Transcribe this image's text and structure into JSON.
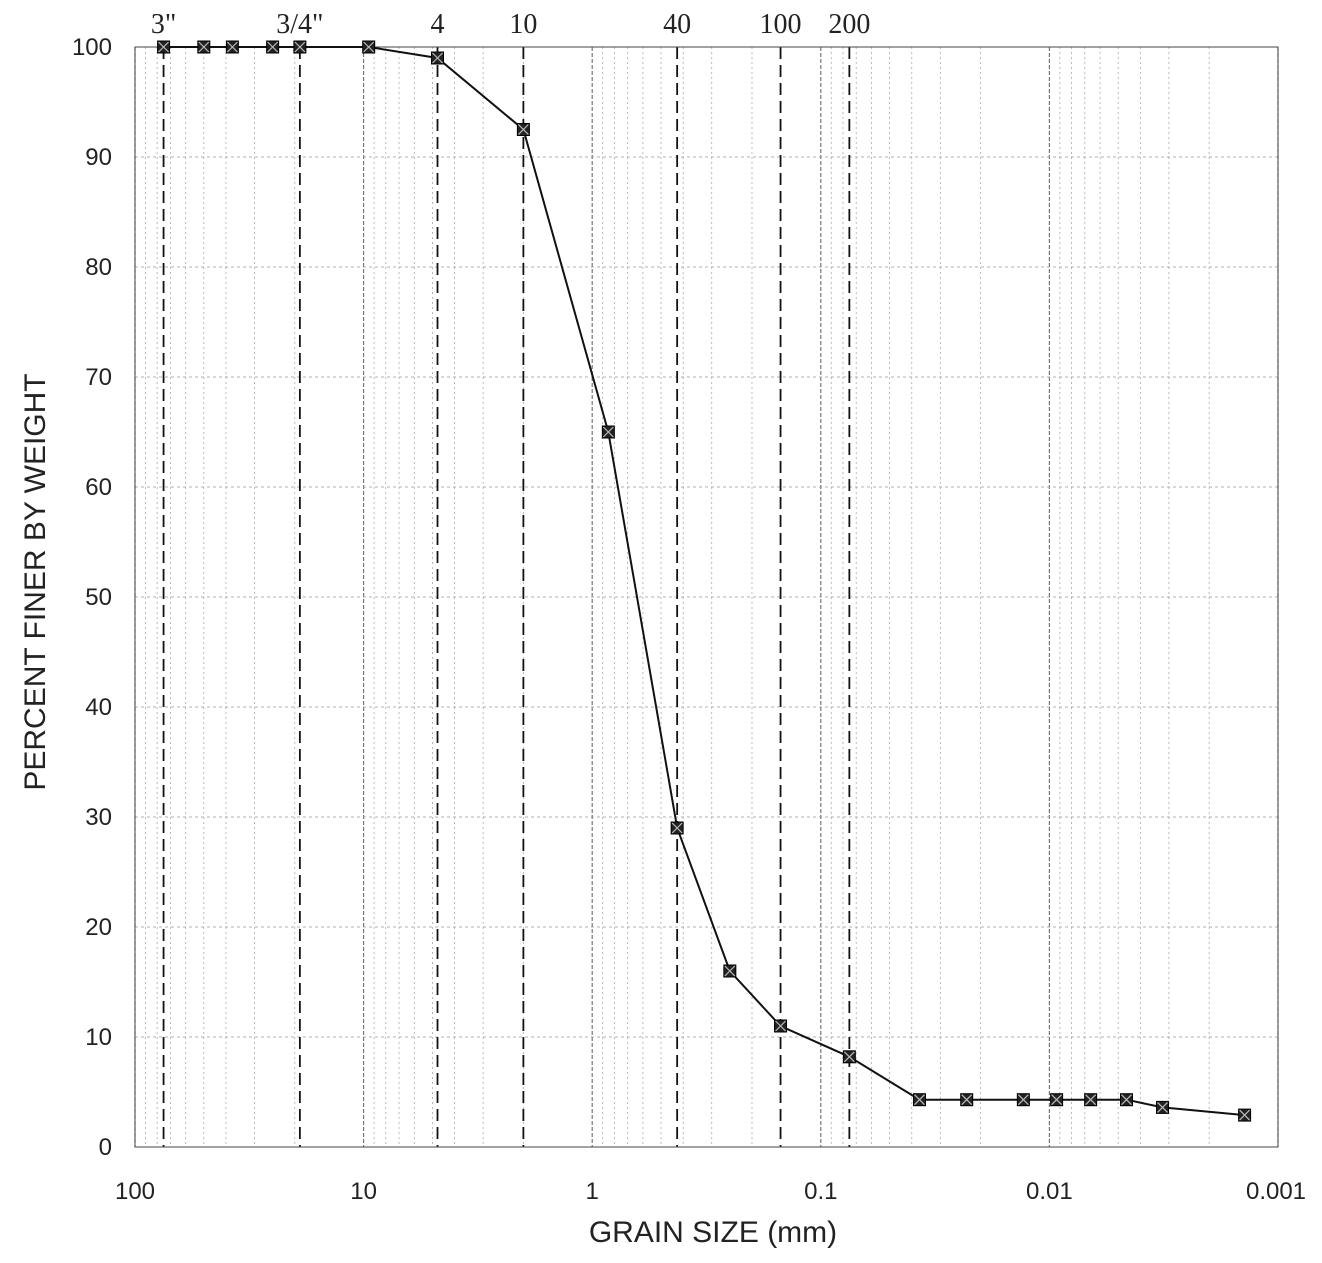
{
  "chart_data": {
    "type": "line",
    "xlabel": "GRAIN SIZE (mm)",
    "ylabel": "PERCENT FINER BY WEIGHT",
    "x_scale": "log",
    "x_reversed": true,
    "xlim": [
      100,
      0.001
    ],
    "ylim": [
      0,
      100
    ],
    "x_tick_labels": [
      "100",
      "10",
      "1",
      "0.1",
      "0.01",
      "0.001"
    ],
    "x_tick_values": [
      100,
      10,
      1,
      0.1,
      0.01,
      0.001
    ],
    "y_tick_labels": [
      "0",
      "10",
      "20",
      "30",
      "40",
      "50",
      "60",
      "70",
      "80",
      "90",
      "100"
    ],
    "y_tick_values": [
      0,
      10,
      20,
      30,
      40,
      50,
      60,
      70,
      80,
      90,
      100
    ],
    "grid": true,
    "sieve_lines": [
      {
        "label": "3\"",
        "x": 75
      },
      {
        "label": "3/4\"",
        "x": 19
      },
      {
        "label": "4",
        "x": 4.75
      },
      {
        "label": "10",
        "x": 2
      },
      {
        "label": "40",
        "x": 0.425
      },
      {
        "label": "100",
        "x": 0.15
      },
      {
        "label": "200",
        "x": 0.075
      }
    ],
    "series": [
      {
        "name": "",
        "marker": "square-x",
        "color": "#111111",
        "x": [
          75,
          50,
          37.5,
          25,
          19,
          9.5,
          4.75,
          2,
          0.85,
          0.425,
          0.25,
          0.15,
          0.075,
          0.037,
          0.023,
          0.013,
          0.0093,
          0.0066,
          0.0046,
          0.0032,
          0.0014
        ],
        "y": [
          100,
          100,
          100,
          100,
          100,
          100,
          99,
          92.5,
          65,
          29,
          16,
          11,
          8.2,
          4.3,
          4.3,
          4.3,
          4.3,
          4.3,
          4.3,
          3.6,
          2.9
        ]
      }
    ]
  }
}
